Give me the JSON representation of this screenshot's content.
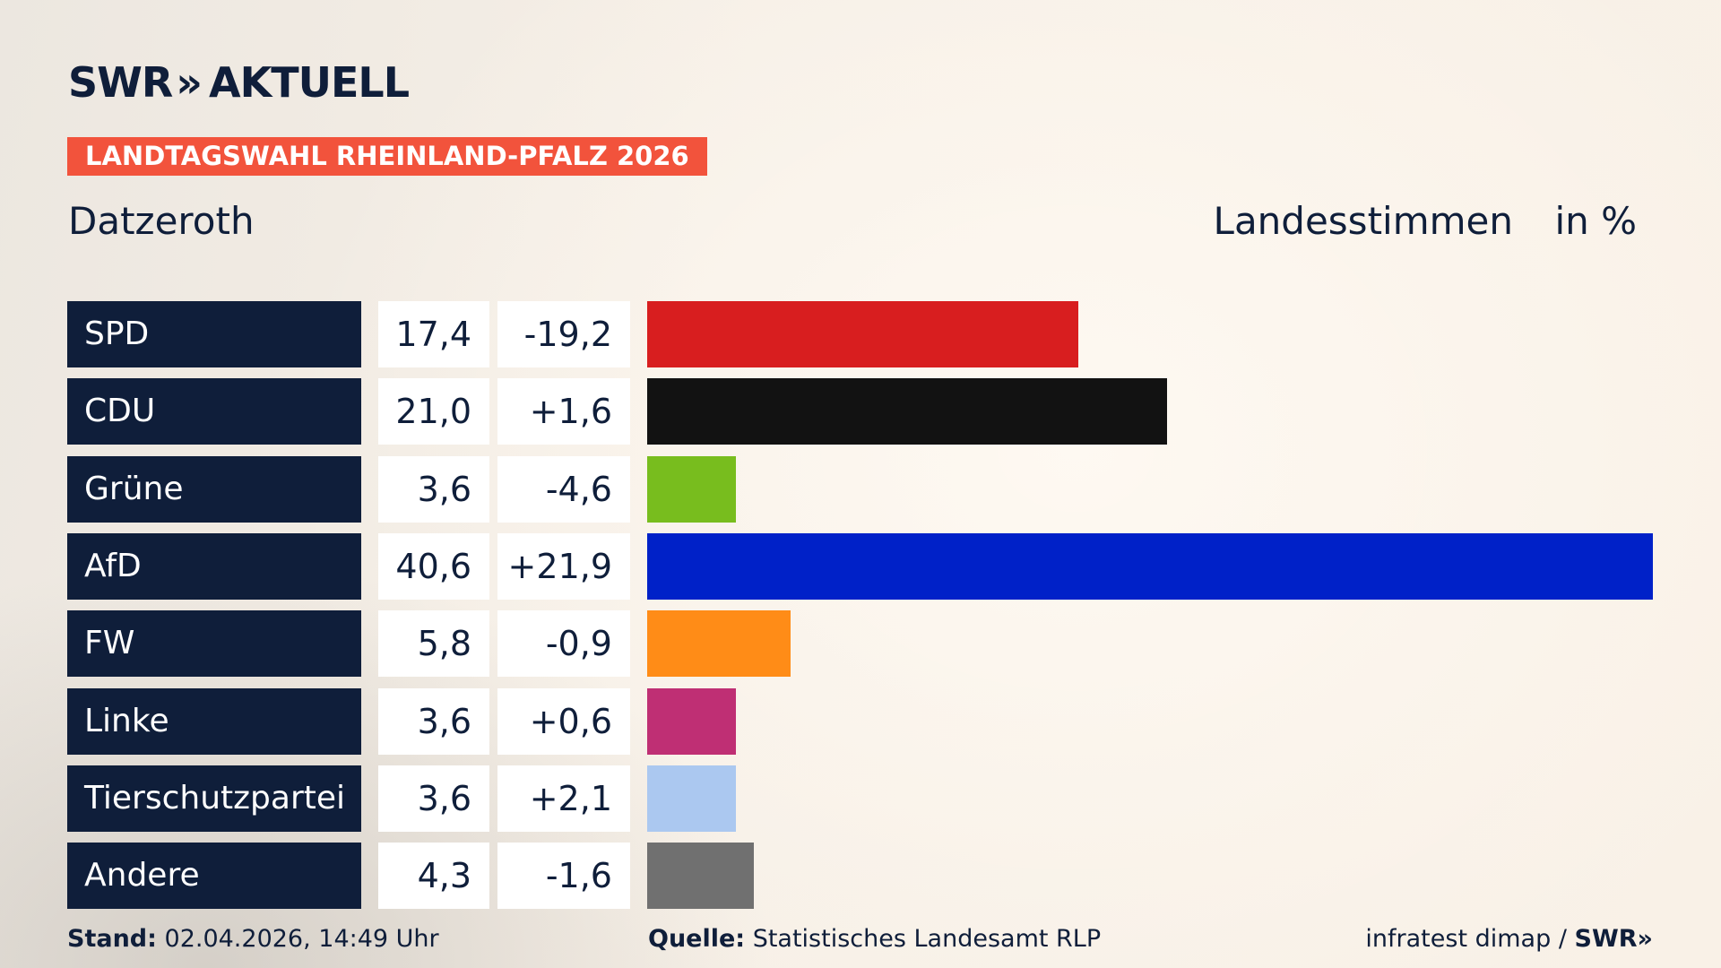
{
  "brand": {
    "logo_text": "SWR",
    "logo_chevrons": "»",
    "logo_suffix": "AKTUELL"
  },
  "badge": "LANDTAGSWAHL RHEINLAND-PFALZ 2026",
  "location": "Datzeroth",
  "vote_type": "Landesstimmen",
  "unit": "in %",
  "chart_data": {
    "type": "bar",
    "orientation": "horizontal",
    "categories": [
      "SPD",
      "CDU",
      "Grüne",
      "AfD",
      "FW",
      "Linke",
      "Tierschutzpartei",
      "Andere"
    ],
    "values": [
      17.4,
      21.0,
      3.6,
      40.6,
      5.8,
      3.6,
      3.6,
      4.3
    ],
    "value_labels": [
      "17,4",
      "21,0",
      "3,6",
      "40,6",
      "5,8",
      "3,6",
      "3,6",
      "4,3"
    ],
    "diff_labels": [
      "-19,2",
      "+1,6",
      "-4,6",
      "+21,9",
      "-0,9",
      "+0,6",
      "+2,1",
      "-1,6"
    ],
    "colors": [
      "#d81e1f",
      "#121212",
      "#78bd1e",
      "#0021c8",
      "#ff8c17",
      "#bf2f74",
      "#abc8f0",
      "#707070"
    ],
    "xlim": [
      0,
      40.6
    ],
    "grid": false,
    "legend": "none"
  },
  "footer": {
    "stand_label": "Stand:",
    "stand_value": "02.04.2026, 14:49 Uhr",
    "source_label": "Quelle:",
    "source_value": "Statistisches Landesamt RLP",
    "credit": "infratest dimap /",
    "credit_brand": "SWR»"
  }
}
